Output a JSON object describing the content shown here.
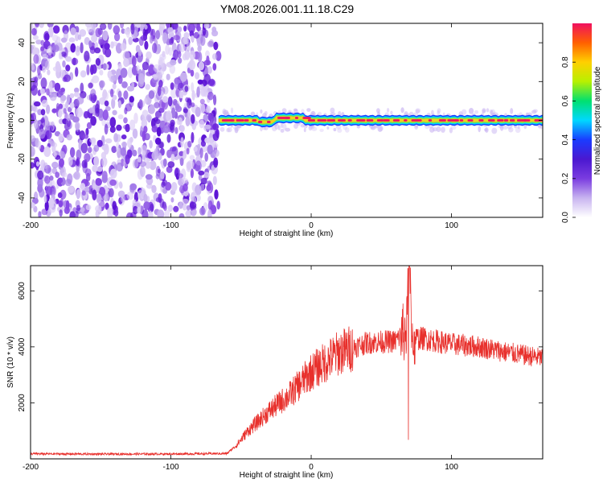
{
  "title": "YM08.2026.001.11.18.C29",
  "colors": {
    "snr_line": "#e8302c",
    "colormap": [
      "#ffffff",
      "#c8b4f0",
      "#7a3ce0",
      "#4a18d0",
      "#1a3cff",
      "#00d8ff",
      "#00e070",
      "#b8f000",
      "#ffd000",
      "#ff6000",
      "#f01060"
    ]
  },
  "chart_data": [
    {
      "type": "heatmap",
      "name": "spectrogram",
      "xlabel": "Height of straight line (km)",
      "ylabel": "Frequency (Hz)",
      "xlim": [
        -200,
        165
      ],
      "ylim": [
        -50,
        50
      ],
      "x_ticks": [
        "-200",
        "-100",
        "0",
        "100"
      ],
      "y_ticks": [
        "40",
        "20",
        "0",
        "-20",
        "-40"
      ],
      "noise_region_x": [
        -200,
        -66
      ],
      "signal_onset_x": -66,
      "signal_frequency_hz": 0,
      "colorbar": {
        "label": "Normalized spectral amplitude",
        "range": [
          0,
          1
        ],
        "ticks": [
          "0.0",
          "0.2",
          "0.4",
          "0.6",
          "0.8"
        ]
      }
    },
    {
      "type": "line",
      "name": "snr",
      "xlabel": "Height of straight line (km)",
      "ylabel": "SNR (10 * v/v)",
      "xlim": [
        -200,
        165
      ],
      "ylim": [
        0,
        6900
      ],
      "x_ticks": [
        "-200",
        "-100",
        "0",
        "100"
      ],
      "y_ticks": [
        "2000",
        "4000",
        "6000"
      ],
      "series": [
        {
          "x": [
            -200,
            -150,
            -100,
            -60,
            -53,
            -45,
            -30,
            -15,
            0,
            20,
            40,
            60,
            68,
            70,
            72,
            80,
            100,
            120,
            140,
            165
          ],
          "y": [
            180,
            170,
            175,
            190,
            500,
            1000,
            1700,
            2300,
            3100,
            3800,
            4150,
            4200,
            4600,
            6800,
            4300,
            4300,
            4100,
            4000,
            3800,
            3600
          ]
        }
      ],
      "features": {
        "spike_x": 69,
        "spike_max": 6800,
        "spike_min": 680
      }
    }
  ]
}
